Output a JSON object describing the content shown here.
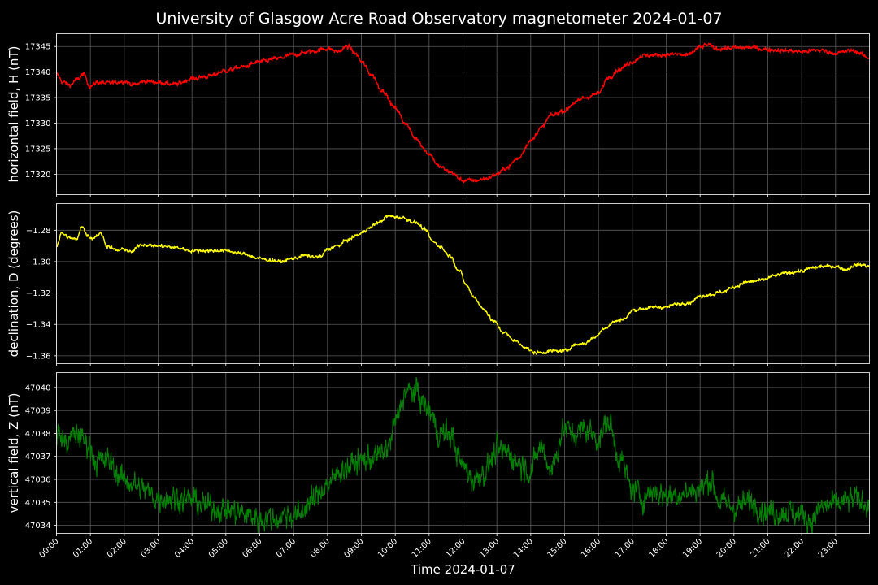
{
  "chart_data": {
    "type": "line",
    "title": "University of Glasgow Acre Road Observatory magnetometer 2024-01-07",
    "xlabel": "Time 2024-01-07",
    "x_ticks": [
      "00:00",
      "01:00",
      "02:00",
      "03:00",
      "04:00",
      "05:00",
      "06:00",
      "07:00",
      "08:00",
      "09:00",
      "10:00",
      "11:00",
      "12:00",
      "13:00",
      "14:00",
      "15:00",
      "16:00",
      "17:00",
      "18:00",
      "19:00",
      "20:00",
      "21:00",
      "22:00",
      "23:00"
    ],
    "xlim_hours": [
      0,
      24
    ],
    "grid": true,
    "background": "#000000",
    "panels": [
      {
        "name": "H",
        "ylabel": "horizontal field, H (nT)",
        "color": "#ff0000",
        "ylim": [
          17316.0,
          17347.5
        ],
        "y_ticks": [
          17320,
          17325,
          17330,
          17335,
          17340,
          17345
        ],
        "y_tick_labels": [
          "17320",
          "17325",
          "17330",
          "17335",
          "17340",
          "17345"
        ],
        "noise": 0.35,
        "x_hours": [
          0,
          0.2,
          0.4,
          0.6,
          0.8,
          1.0,
          1.2,
          1.5,
          2.0,
          2.3,
          2.6,
          3.0,
          3.5,
          4.0,
          4.5,
          5.0,
          5.5,
          6.0,
          6.5,
          7.0,
          7.5,
          8.0,
          8.3,
          8.6,
          8.85,
          9.0,
          9.3,
          9.6,
          10.0,
          10.3,
          10.6,
          11.0,
          11.3,
          11.6,
          12.0,
          12.4,
          12.7,
          13.0,
          13.3,
          13.6,
          14.0,
          14.3,
          14.6,
          15.0,
          15.3,
          15.6,
          16.0,
          16.3,
          16.6,
          17.0,
          17.3,
          17.6,
          18.0,
          18.3,
          18.6,
          19.0,
          19.2,
          19.5,
          20.0,
          20.5,
          21.0,
          21.5,
          22.0,
          22.5,
          23.0,
          23.5,
          24.0
        ],
        "values": [
          17339.5,
          17338,
          17337.5,
          17338.5,
          17339.5,
          17337.2,
          17338,
          17337.8,
          17338.2,
          17337.5,
          17338.2,
          17338,
          17337.6,
          17338.7,
          17339.2,
          17340.3,
          17341,
          17342,
          17342.6,
          17343.4,
          17344,
          17344.6,
          17344,
          17345,
          17343.5,
          17342,
          17339.5,
          17336.5,
          17333,
          17330,
          17327,
          17324,
          17321.5,
          17320.5,
          17318.8,
          17318.8,
          17319.2,
          17320,
          17321.3,
          17323,
          17326.5,
          17329,
          17331.5,
          17332.5,
          17334,
          17335,
          17335.8,
          17339,
          17340.5,
          17342,
          17343.2,
          17343.3,
          17343.4,
          17343.5,
          17343.2,
          17344.8,
          17345.3,
          17344.6,
          17344.7,
          17344.8,
          17344.4,
          17344.2,
          17344,
          17344.3,
          17343.7,
          17344.2,
          17342.8
        ]
      },
      {
        "name": "D",
        "ylabel": "declination, D (degrees)",
        "color": "#ffff00",
        "ylim": [
          -1.365,
          -1.263
        ],
        "y_ticks": [
          -1.36,
          -1.34,
          -1.32,
          -1.3,
          -1.28
        ],
        "y_tick_labels": [
          "−1.36",
          "−1.34",
          "−1.32",
          "−1.30",
          "−1.28"
        ],
        "noise": 0.0009,
        "x_hours": [
          0,
          0.15,
          0.4,
          0.6,
          0.75,
          0.9,
          1.05,
          1.3,
          1.5,
          1.8,
          2.0,
          2.2,
          2.5,
          3.0,
          3.5,
          4.0,
          4.5,
          5.0,
          5.5,
          6.0,
          6.3,
          6.6,
          7.0,
          7.3,
          7.6,
          7.8,
          8.0,
          8.3,
          8.6,
          8.9,
          9.2,
          9.5,
          9.8,
          10.2,
          10.6,
          10.9,
          11.1,
          11.3,
          11.6,
          11.9,
          12.1,
          12.3,
          12.6,
          12.9,
          13.2,
          13.5,
          13.8,
          14.1,
          14.3,
          14.6,
          15.0,
          15.3,
          15.6,
          15.9,
          16.2,
          16.5,
          16.8,
          17.0,
          17.3,
          17.7,
          18.0,
          18.3,
          18.7,
          19.0,
          19.3,
          19.7,
          20.0,
          20.4,
          20.8,
          21.2,
          21.6,
          22.0,
          22.3,
          22.6,
          23.0,
          23.3,
          23.6,
          23.8,
          24.0
        ],
        "values": [
          -1.29,
          -1.282,
          -1.285,
          -1.286,
          -1.277,
          -1.283,
          -1.285,
          -1.282,
          -1.29,
          -1.293,
          -1.292,
          -1.294,
          -1.289,
          -1.29,
          -1.291,
          -1.293,
          -1.293,
          -1.293,
          -1.295,
          -1.298,
          -1.299,
          -1.3,
          -1.298,
          -1.296,
          -1.297,
          -1.297,
          -1.292,
          -1.29,
          -1.286,
          -1.283,
          -1.279,
          -1.275,
          -1.271,
          -1.272,
          -1.275,
          -1.28,
          -1.287,
          -1.29,
          -1.296,
          -1.306,
          -1.315,
          -1.322,
          -1.33,
          -1.338,
          -1.345,
          -1.35,
          -1.354,
          -1.358,
          -1.358,
          -1.357,
          -1.357,
          -1.353,
          -1.352,
          -1.348,
          -1.342,
          -1.338,
          -1.336,
          -1.331,
          -1.33,
          -1.329,
          -1.329,
          -1.327,
          -1.326,
          -1.322,
          -1.321,
          -1.319,
          -1.316,
          -1.313,
          -1.312,
          -1.309,
          -1.307,
          -1.306,
          -1.304,
          -1.303,
          -1.303,
          -1.305,
          -1.302,
          -1.302,
          -1.303
        ]
      },
      {
        "name": "Z",
        "ylabel": "vertical field, Z (nT)",
        "color": "#008000",
        "ylim": [
          47033.65,
          47040.65
        ],
        "y_ticks": [
          47034,
          47035,
          47036,
          47037,
          47038,
          47039,
          47040
        ],
        "y_tick_labels": [
          "47034",
          "47035",
          "47036",
          "47037",
          "47038",
          "47039",
          "47040"
        ],
        "noise": 0.45,
        "x_hours": [
          0,
          0.3,
          0.6,
          0.9,
          1.2,
          1.5,
          2.0,
          2.5,
          3.0,
          3.5,
          4.0,
          4.5,
          5.0,
          5.5,
          6.0,
          6.5,
          6.8,
          7.1,
          7.5,
          8.0,
          8.5,
          9.0,
          9.5,
          9.8,
          10.0,
          10.3,
          10.6,
          11.0,
          11.3,
          11.6,
          12.0,
          12.3,
          12.6,
          13.0,
          13.3,
          13.6,
          14.0,
          14.3,
          14.6,
          15.0,
          15.3,
          15.6,
          16.0,
          16.3,
          16.6,
          17.0,
          17.3,
          17.6,
          18.0,
          18.5,
          19.0,
          19.3,
          19.6,
          20.0,
          20.5,
          21.0,
          21.5,
          22.0,
          22.3,
          22.6,
          23.0,
          23.5,
          24.0
        ],
        "values": [
          47038.0,
          47037.6,
          47038.0,
          47037.6,
          47036.8,
          47036.8,
          47036.0,
          47035.6,
          47035.2,
          47035.2,
          47035.1,
          47034.8,
          47034.7,
          47034.5,
          47034.3,
          47034.3,
          47034.5,
          47034.4,
          47035.0,
          47035.8,
          47036.5,
          47036.8,
          47037.0,
          47037.4,
          47038.5,
          47039.8,
          47039.8,
          47039.0,
          47038.0,
          47038.0,
          47036.6,
          47036.0,
          47036.3,
          47037.2,
          47037.2,
          47036.8,
          47036.4,
          47037.4,
          47036.5,
          47038.2,
          47038.0,
          47038.2,
          47037.8,
          47038.5,
          47037.0,
          47035.6,
          47035.2,
          47035.5,
          47035.3,
          47035.4,
          47035.6,
          47036.0,
          47035.0,
          47034.8,
          47035.0,
          47034.6,
          47034.6,
          47034.5,
          47034.2,
          47034.8,
          47034.9,
          47035.1,
          47035.0
        ]
      }
    ]
  }
}
